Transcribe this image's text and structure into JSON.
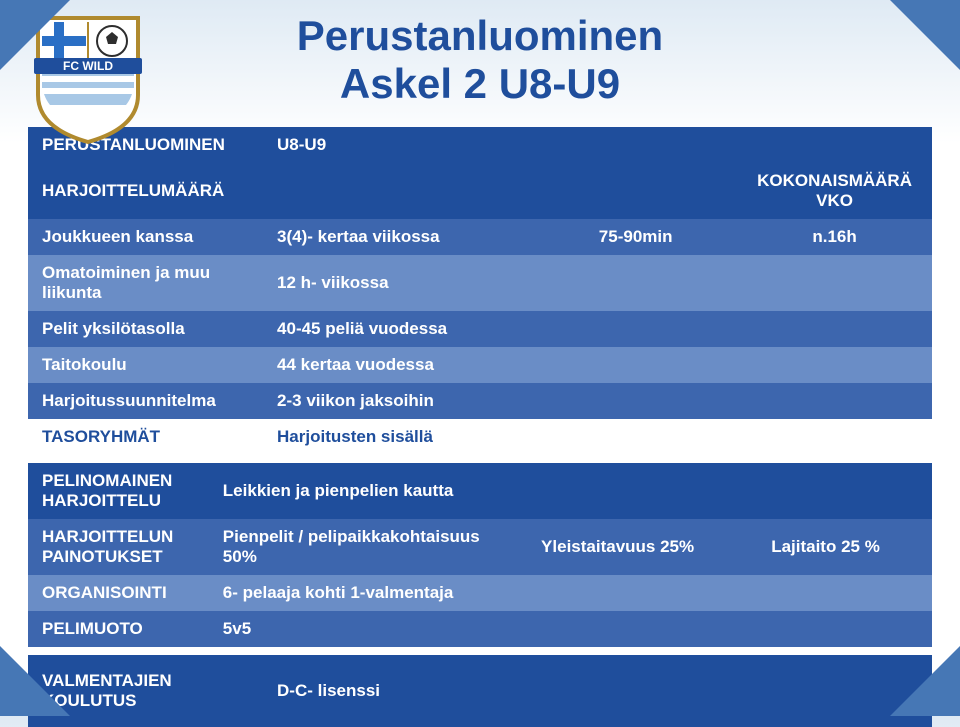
{
  "colors": {
    "title_color": "#1f4e9c",
    "header_bg": "#1f4e9c",
    "row_a_bg": "#3d66ae",
    "row_b_bg": "#6a8dc6",
    "tasory_text": "#1f4e9c",
    "corner_fill": "#4677b5",
    "text_color": "#ffffff"
  },
  "title": {
    "line1": "Perustanluominen",
    "line2": "Askel 2 U8-U9"
  },
  "table1": {
    "header": {
      "c1": "PERUSTANLUOMINEN",
      "c2": "U8-U9"
    },
    "subheader": {
      "c1": "HARJOITTELUMÄÄRÄ",
      "c4a": "KOKONAISMÄÄRÄ",
      "c4b": "VKO"
    },
    "rows": [
      {
        "c1": "Joukkueen kanssa",
        "c2": "3(4)- kertaa viikossa",
        "c3": "75-90min",
        "c4": "n.16h",
        "cls": "row-a"
      },
      {
        "c1": "Omatoiminen ja muu liikunta",
        "c2": "12 h- viikossa",
        "c3": "",
        "c4": "",
        "cls": "row-b"
      },
      {
        "c1": "Pelit yksilötasolla",
        "c2": "40-45 peliä vuodessa",
        "c3": "",
        "c4": "",
        "cls": "row-a"
      },
      {
        "c1": "Taitokoulu",
        "c2": "44 kertaa vuodessa",
        "c3": "",
        "c4": "",
        "cls": "row-b"
      },
      {
        "c1": "Harjoitussuunnitelma",
        "c2": "2-3 viikon jaksoihin",
        "c3": "",
        "c4": "",
        "cls": "row-a"
      }
    ],
    "tasory": {
      "c1": "TASORYHMÄT",
      "c2": "Harjoitusten sisällä"
    }
  },
  "table2": {
    "rows": [
      {
        "c1": "PELINOMAINEN HARJOITTELU",
        "c2": "Leikkien ja pienpelien kautta",
        "c3": "",
        "c4": "",
        "cls": "hdr"
      },
      {
        "c1": "HARJOITTELUN PAINOTUKSET",
        "c2": "Pienpelit / pelipaikkakohtaisuus 50%",
        "c3": "Yleistaitavuus 25%",
        "c4": "Lajitaito 25 %",
        "cls": "row-a"
      },
      {
        "c1": "ORGANISOINTI",
        "c2": "6- pelaaja kohti 1-valmentaja",
        "c3": "",
        "c4": "",
        "cls": "row-b"
      },
      {
        "c1": "PELIMUOTO",
        "c2": "5v5",
        "c3": "",
        "c4": "",
        "cls": "row-a"
      }
    ]
  },
  "table3": {
    "row": {
      "c1": "VALMENTAJIEN KOULUTUS",
      "c2": "D-C- lisenssi"
    }
  },
  "logo": {
    "text": "FC WILD",
    "shield_stroke": "#b08a2e",
    "shield_fill": "#ffffff",
    "banner_fill": "#1f4e9c",
    "cross_blue": "#2a6fc5",
    "ball_fill": "#2e2e2e",
    "stripe_color": "#a8c8e6"
  }
}
